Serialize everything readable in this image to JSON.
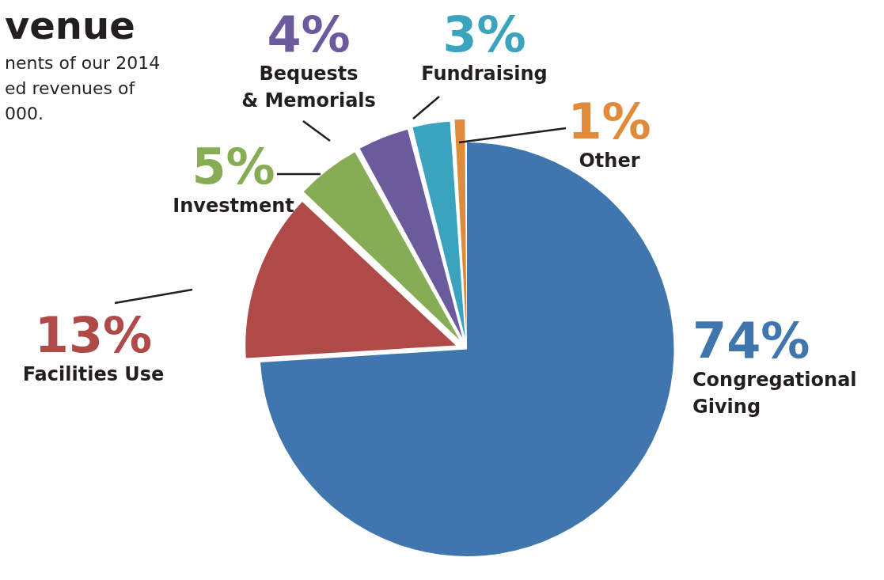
{
  "chart_data": {
    "type": "pie",
    "title": "venue",
    "subtitle": "nents of our 2014\ned revenues of\n000.",
    "categories": [
      "Congregational\nGiving",
      "Facilities Use",
      "Investment",
      "Bequests\n& Memorials",
      "Fundraising",
      "Other"
    ],
    "values": [
      74,
      13,
      5,
      4,
      3,
      1
    ],
    "colors": [
      "#3f76ad",
      "#b04a48",
      "#86ad55",
      "#6b5a9c",
      "#3aa3bd",
      "#e08a3c"
    ],
    "value_labels": [
      "74%",
      "13%",
      "5%",
      "4%",
      "3%",
      "1%"
    ],
    "legend": false
  }
}
